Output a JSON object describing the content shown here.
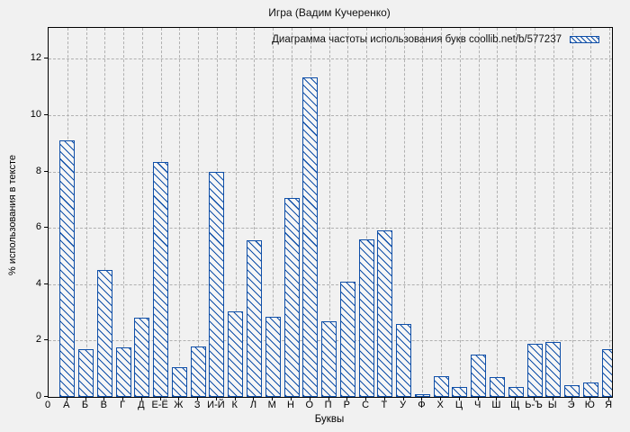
{
  "title": "Игра (Вадим Кучеренко)",
  "legend": {
    "label": "Диаграмма частоты использования букв coollib.net/b/577237"
  },
  "axes": {
    "x_label": "Буквы",
    "y_label": "% использования в тексте",
    "x_origin_label": "0",
    "y_ticks": [
      0,
      2,
      4,
      6,
      8,
      10,
      12
    ]
  },
  "colors": {
    "bar_blue": "#0f4fa8",
    "grid_gray": "#b0b0b0",
    "background": "#f1f1f1",
    "bar_fill": "#f6f6f6"
  },
  "chart_data": {
    "type": "bar",
    "title": "Игра (Вадим Кучеренко)",
    "xlabel": "Буквы",
    "ylabel": "% использования в тексте",
    "legend": [
      "Диаграмма частоты использования букв coollib.net/b/577237"
    ],
    "legend_position": "top-right-inside",
    "grid": true,
    "hatch_style": "backslash-diagonal",
    "ylim": [
      0,
      13.1
    ],
    "xlim_positions": 30,
    "categories": [
      "А",
      "Б",
      "В",
      "Г",
      "Д",
      "Е-Ё",
      "Ж",
      "З",
      "И-Й",
      "К",
      "Л",
      "М",
      "Н",
      "О",
      "П",
      "Р",
      "С",
      "Т",
      "У",
      "Ф",
      "Х",
      "Ц",
      "Ч",
      "Ш",
      "Щ",
      "Ь-Ъ",
      "Ы",
      "Э",
      "Ю",
      "Я"
    ],
    "values": [
      9.1,
      1.7,
      4.5,
      1.75,
      2.8,
      8.35,
      1.05,
      1.8,
      8.0,
      3.05,
      5.55,
      2.85,
      7.05,
      11.35,
      2.7,
      4.1,
      5.6,
      5.9,
      2.6,
      0.1,
      0.75,
      0.35,
      1.5,
      0.7,
      0.35,
      1.9,
      1.95,
      0.4,
      0.5,
      1.7
    ]
  }
}
